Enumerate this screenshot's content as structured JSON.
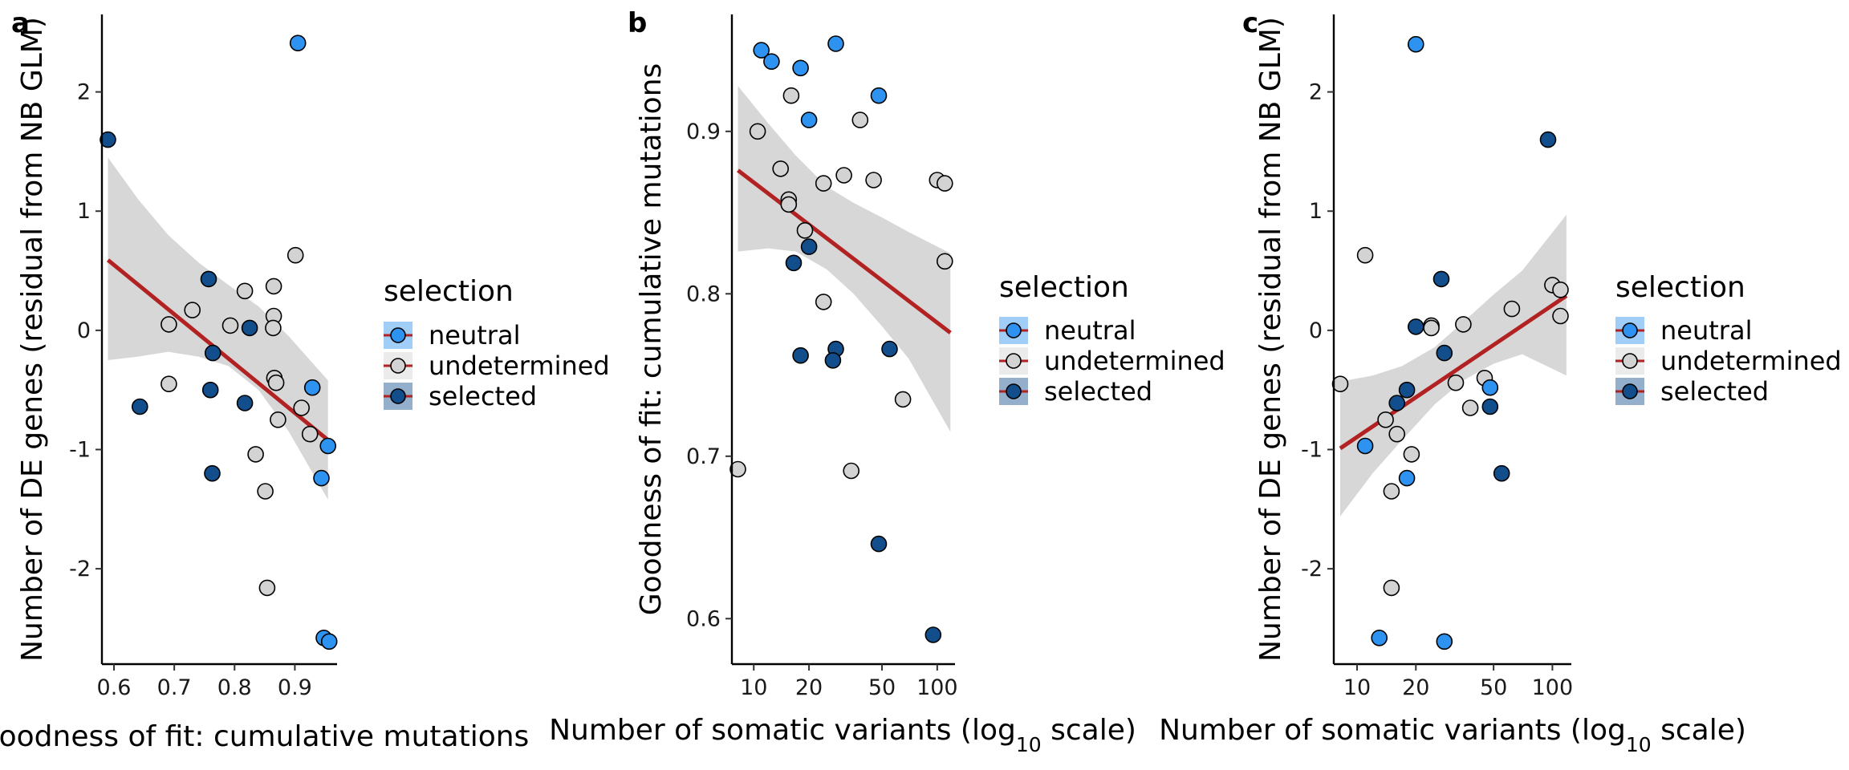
{
  "colors": {
    "neutral": "#2e93f0",
    "undetermined": "#d3d3d3",
    "selected": "#124e8c",
    "line": "#b22222",
    "band": "#d3d3d3",
    "outline": "#000000"
  },
  "legend": {
    "title": "selection",
    "entries": [
      {
        "key": "neutral",
        "label": "neutral"
      },
      {
        "key": "undetermined",
        "label": "undetermined"
      },
      {
        "key": "selected",
        "label": "selected"
      }
    ]
  },
  "chart_data": [
    {
      "panel": "a",
      "type": "scatter",
      "xlabel": "Goodness of fit: cumulative mutations",
      "ylabel": "Number of DE genes (residual from NB GLM)",
      "xscale": "linear",
      "xlim": [
        0.58,
        0.97
      ],
      "ylim": [
        -2.8,
        2.65
      ],
      "xticks": [
        0.6,
        0.7,
        0.8,
        0.9
      ],
      "xtick_labels": [
        "0.6",
        "0.7",
        "0.8",
        "0.9"
      ],
      "yticks": [
        -2,
        -1,
        0,
        1,
        2
      ],
      "ytick_labels": [
        "-2",
        "-1",
        "0",
        "1",
        "2"
      ],
      "fit": {
        "x": [
          0.59,
          0.955
        ],
        "y": [
          0.59,
          -0.92
        ]
      },
      "band": {
        "x": [
          0.59,
          0.64,
          0.69,
          0.74,
          0.79,
          0.84,
          0.89,
          0.955
        ],
        "upper": [
          1.45,
          1.1,
          0.8,
          0.57,
          0.38,
          0.2,
          -0.05,
          -0.42
        ],
        "lower": [
          -0.25,
          -0.22,
          -0.18,
          -0.22,
          -0.3,
          -0.5,
          -0.85,
          -1.42
        ]
      },
      "points": [
        {
          "x": 0.905,
          "y": 2.41,
          "group": "neutral"
        },
        {
          "x": 0.59,
          "y": 1.6,
          "group": "selected"
        },
        {
          "x": 0.901,
          "y": 0.63,
          "group": "undetermined"
        },
        {
          "x": 0.757,
          "y": 0.43,
          "group": "selected"
        },
        {
          "x": 0.865,
          "y": 0.37,
          "group": "undetermined"
        },
        {
          "x": 0.817,
          "y": 0.33,
          "group": "undetermined"
        },
        {
          "x": 0.73,
          "y": 0.17,
          "group": "undetermined"
        },
        {
          "x": 0.865,
          "y": 0.12,
          "group": "undetermined"
        },
        {
          "x": 0.691,
          "y": 0.05,
          "group": "undetermined"
        },
        {
          "x": 0.793,
          "y": 0.04,
          "group": "undetermined"
        },
        {
          "x": 0.825,
          "y": 0.02,
          "group": "selected"
        },
        {
          "x": 0.864,
          "y": 0.02,
          "group": "undetermined"
        },
        {
          "x": 0.764,
          "y": -0.19,
          "group": "selected"
        },
        {
          "x": 0.866,
          "y": -0.4,
          "group": "undetermined"
        },
        {
          "x": 0.869,
          "y": -0.44,
          "group": "undetermined"
        },
        {
          "x": 0.691,
          "y": -0.45,
          "group": "undetermined"
        },
        {
          "x": 0.929,
          "y": -0.48,
          "group": "neutral"
        },
        {
          "x": 0.76,
          "y": -0.5,
          "group": "selected"
        },
        {
          "x": 0.817,
          "y": -0.61,
          "group": "selected"
        },
        {
          "x": 0.643,
          "y": -0.64,
          "group": "selected"
        },
        {
          "x": 0.911,
          "y": -0.65,
          "group": "undetermined"
        },
        {
          "x": 0.872,
          "y": -0.75,
          "group": "undetermined"
        },
        {
          "x": 0.925,
          "y": -0.87,
          "group": "undetermined"
        },
        {
          "x": 0.955,
          "y": -0.97,
          "group": "neutral"
        },
        {
          "x": 0.835,
          "y": -1.04,
          "group": "undetermined"
        },
        {
          "x": 0.763,
          "y": -1.2,
          "group": "selected"
        },
        {
          "x": 0.944,
          "y": -1.24,
          "group": "neutral"
        },
        {
          "x": 0.851,
          "y": -1.35,
          "group": "undetermined"
        },
        {
          "x": 0.854,
          "y": -2.16,
          "group": "undetermined"
        },
        {
          "x": 0.948,
          "y": -2.58,
          "group": "neutral"
        },
        {
          "x": 0.957,
          "y": -2.61,
          "group": "neutral"
        }
      ]
    },
    {
      "panel": "b",
      "type": "scatter",
      "xlabel": "Number of somatic variants (log10 scale)",
      "ylabel": "Goodness of fit: cumulative mutations",
      "xscale": "log10",
      "xlim": [
        7.6,
        125
      ],
      "ylim": [
        0.572,
        0.972
      ],
      "xticks": [
        10,
        20,
        50,
        100
      ],
      "xtick_labels": [
        "10",
        "20",
        "50",
        "100"
      ],
      "yticks": [
        0.6,
        0.7,
        0.8,
        0.9
      ],
      "ytick_labels": [
        "0.6",
        "0.7",
        "0.8",
        "0.9"
      ],
      "fit": {
        "x": [
          8.2,
          118
        ],
        "y": [
          0.876,
          0.776
        ]
      },
      "band": {
        "x": [
          8.2,
          12,
          17,
          25,
          35,
          50,
          70,
          118
        ],
        "upper": [
          0.928,
          0.905,
          0.885,
          0.866,
          0.856,
          0.847,
          0.838,
          0.825
        ],
        "lower": [
          0.826,
          0.828,
          0.826,
          0.815,
          0.8,
          0.78,
          0.76,
          0.715
        ]
      },
      "points": [
        {
          "x": 11,
          "y": 0.95,
          "group": "neutral"
        },
        {
          "x": 12.5,
          "y": 0.943,
          "group": "neutral"
        },
        {
          "x": 18,
          "y": 0.939,
          "group": "neutral"
        },
        {
          "x": 28,
          "y": 0.954,
          "group": "neutral"
        },
        {
          "x": 48,
          "y": 0.922,
          "group": "neutral"
        },
        {
          "x": 20,
          "y": 0.907,
          "group": "neutral"
        },
        {
          "x": 16,
          "y": 0.922,
          "group": "undetermined"
        },
        {
          "x": 10.5,
          "y": 0.9,
          "group": "undetermined"
        },
        {
          "x": 38,
          "y": 0.907,
          "group": "undetermined"
        },
        {
          "x": 14,
          "y": 0.877,
          "group": "undetermined"
        },
        {
          "x": 31,
          "y": 0.873,
          "group": "undetermined"
        },
        {
          "x": 24,
          "y": 0.868,
          "group": "undetermined"
        },
        {
          "x": 45,
          "y": 0.87,
          "group": "undetermined"
        },
        {
          "x": 100,
          "y": 0.87,
          "group": "undetermined"
        },
        {
          "x": 110,
          "y": 0.868,
          "group": "undetermined"
        },
        {
          "x": 15.5,
          "y": 0.858,
          "group": "undetermined"
        },
        {
          "x": 15.5,
          "y": 0.855,
          "group": "undetermined"
        },
        {
          "x": 19,
          "y": 0.839,
          "group": "undetermined"
        },
        {
          "x": 20,
          "y": 0.829,
          "group": "selected"
        },
        {
          "x": 110,
          "y": 0.82,
          "group": "undetermined"
        },
        {
          "x": 16.5,
          "y": 0.819,
          "group": "selected"
        },
        {
          "x": 24,
          "y": 0.795,
          "group": "undetermined"
        },
        {
          "x": 28,
          "y": 0.766,
          "group": "selected"
        },
        {
          "x": 55,
          "y": 0.766,
          "group": "selected"
        },
        {
          "x": 18,
          "y": 0.762,
          "group": "selected"
        },
        {
          "x": 27,
          "y": 0.759,
          "group": "selected"
        },
        {
          "x": 65,
          "y": 0.735,
          "group": "undetermined"
        },
        {
          "x": 8.2,
          "y": 0.692,
          "group": "undetermined"
        },
        {
          "x": 34,
          "y": 0.691,
          "group": "undetermined"
        },
        {
          "x": 48,
          "y": 0.646,
          "group": "selected"
        },
        {
          "x": 95,
          "y": 0.59,
          "group": "selected"
        }
      ]
    },
    {
      "panel": "c",
      "type": "scatter",
      "xlabel": "Number of somatic variants (log10 scale)",
      "ylabel": "Number of DE genes (residual from NB GLM)",
      "xscale": "log10",
      "xlim": [
        7.6,
        125
      ],
      "ylim": [
        -2.8,
        2.65
      ],
      "xticks": [
        10,
        20,
        50,
        100
      ],
      "xtick_labels": [
        "10",
        "20",
        "50",
        "100"
      ],
      "yticks": [
        -2,
        -1,
        0,
        1,
        2
      ],
      "ytick_labels": [
        "-2",
        "-1",
        "0",
        "1",
        "2"
      ],
      "fit": {
        "x": [
          8.2,
          118
        ],
        "y": [
          -0.99,
          0.29
        ]
      },
      "band": {
        "x": [
          8.2,
          12,
          17,
          25,
          35,
          50,
          70,
          118
        ],
        "upper": [
          -0.43,
          -0.38,
          -0.3,
          -0.14,
          0.07,
          0.3,
          0.5,
          0.97
        ],
        "lower": [
          -1.56,
          -1.2,
          -0.92,
          -0.62,
          -0.42,
          -0.28,
          -0.2,
          -0.38
        ]
      },
      "points": [
        {
          "x": 20,
          "y": 2.4,
          "group": "neutral"
        },
        {
          "x": 95,
          "y": 1.6,
          "group": "selected"
        },
        {
          "x": 11,
          "y": 0.63,
          "group": "undetermined"
        },
        {
          "x": 27,
          "y": 0.43,
          "group": "selected"
        },
        {
          "x": 100,
          "y": 0.38,
          "group": "undetermined"
        },
        {
          "x": 110,
          "y": 0.34,
          "group": "undetermined"
        },
        {
          "x": 62,
          "y": 0.18,
          "group": "undetermined"
        },
        {
          "x": 110,
          "y": 0.12,
          "group": "undetermined"
        },
        {
          "x": 35,
          "y": 0.05,
          "group": "undetermined"
        },
        {
          "x": 24,
          "y": 0.04,
          "group": "undetermined"
        },
        {
          "x": 20,
          "y": 0.03,
          "group": "selected"
        },
        {
          "x": 24,
          "y": 0.02,
          "group": "undetermined"
        },
        {
          "x": 28,
          "y": -0.19,
          "group": "selected"
        },
        {
          "x": 45,
          "y": -0.4,
          "group": "undetermined"
        },
        {
          "x": 32,
          "y": -0.44,
          "group": "undetermined"
        },
        {
          "x": 8.2,
          "y": -0.45,
          "group": "undetermined"
        },
        {
          "x": 48,
          "y": -0.48,
          "group": "neutral"
        },
        {
          "x": 18,
          "y": -0.5,
          "group": "selected"
        },
        {
          "x": 16,
          "y": -0.61,
          "group": "selected"
        },
        {
          "x": 48,
          "y": -0.64,
          "group": "selected"
        },
        {
          "x": 38,
          "y": -0.65,
          "group": "undetermined"
        },
        {
          "x": 14,
          "y": -0.75,
          "group": "undetermined"
        },
        {
          "x": 16,
          "y": -0.87,
          "group": "undetermined"
        },
        {
          "x": 11,
          "y": -0.97,
          "group": "neutral"
        },
        {
          "x": 19,
          "y": -1.04,
          "group": "undetermined"
        },
        {
          "x": 55,
          "y": -1.2,
          "group": "selected"
        },
        {
          "x": 18,
          "y": -1.24,
          "group": "neutral"
        },
        {
          "x": 15,
          "y": -1.35,
          "group": "undetermined"
        },
        {
          "x": 15,
          "y": -2.16,
          "group": "undetermined"
        },
        {
          "x": 13,
          "y": -2.58,
          "group": "neutral"
        },
        {
          "x": 28,
          "y": -2.61,
          "group": "neutral"
        }
      ]
    }
  ]
}
